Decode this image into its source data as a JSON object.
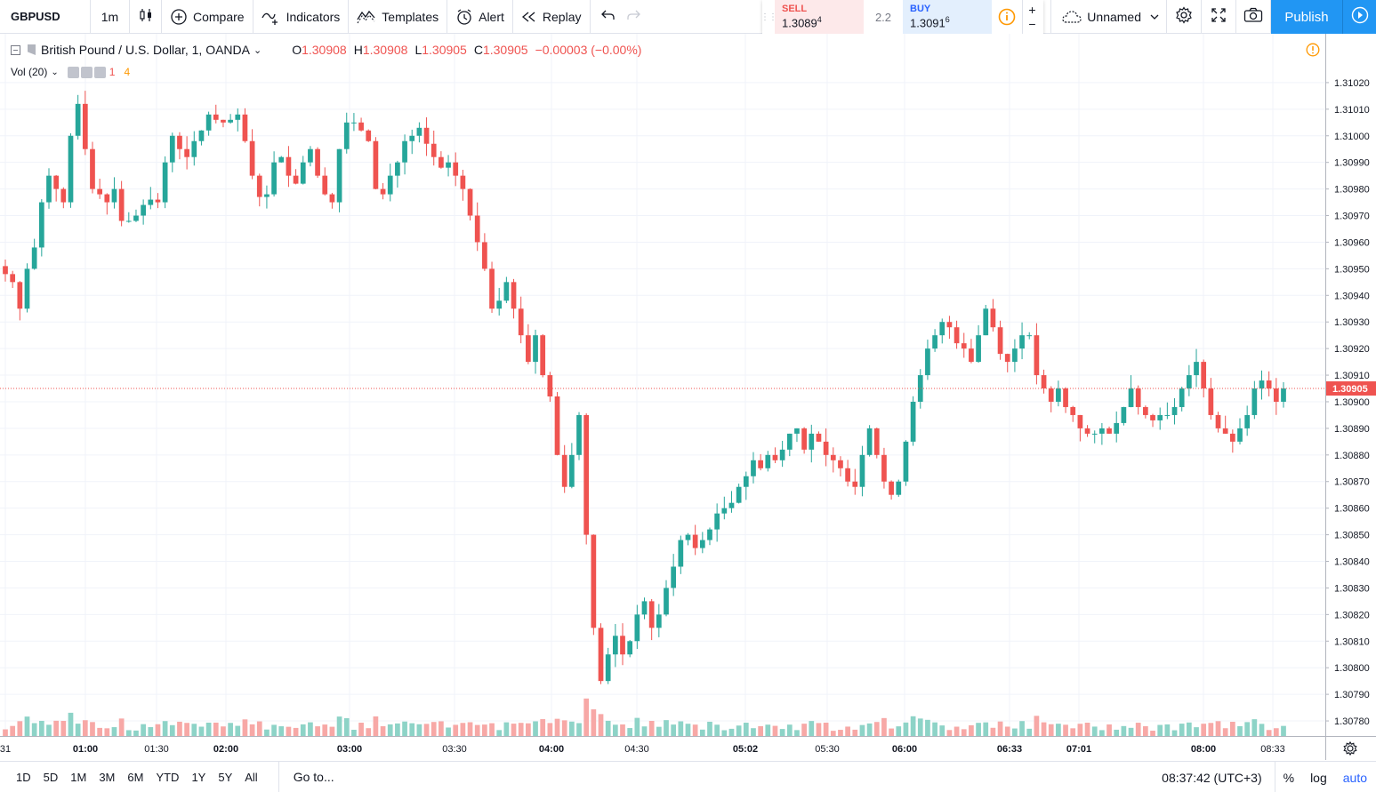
{
  "toolbar": {
    "symbol": "GBPUSD",
    "interval": "1m",
    "compare_label": "Compare",
    "indicators_label": "Indicators",
    "templates_label": "Templates",
    "alert_label": "Alert",
    "replay_label": "Replay"
  },
  "trade": {
    "sell_label": "SELL",
    "sell_price_main": "1.3089",
    "sell_price_sup": "4",
    "spread": "2.2",
    "buy_label": "BUY",
    "buy_price_main": "1.3091",
    "buy_price_sup": "6",
    "plus": "+",
    "minus": "−"
  },
  "layout_name": "Unnamed",
  "publish_label": "Publish",
  "legend": {
    "title": "British Pound / U.S. Dollar, 1, OANDA",
    "o_label": "O",
    "o_value": "1.30908",
    "h_label": "H",
    "h_value": "1.30908",
    "l_label": "L",
    "l_value": "1.30905",
    "c_label": "C",
    "c_value": "1.30905",
    "change": "−0.00003 (−0.00%)"
  },
  "volume_legend": {
    "label": "Vol (20)",
    "value1": "1",
    "value2": "4"
  },
  "chart_data": {
    "type": "candlestick",
    "symbol": "GBPUSD",
    "interval": "1",
    "source": "OANDA",
    "ylim": [
      1.30775,
      1.3103
    ],
    "y_ticks": [
      "1.31020",
      "1.31010",
      "1.31000",
      "1.30990",
      "1.30980",
      "1.30970",
      "1.30960",
      "1.30950",
      "1.30940",
      "1.30930",
      "1.30920",
      "1.30910",
      "1.30900",
      "1.30890",
      "1.30880",
      "1.30870",
      "1.30860",
      "1.30850",
      "1.30840",
      "1.30830",
      "1.30820",
      "1.30810",
      "1.30800",
      "1.30790",
      "1.30780"
    ],
    "x_ticks": [
      "31",
      "01:00",
      "01:30",
      "02:00",
      "03:00",
      "03:30",
      "04:00",
      "04:30",
      "05:02",
      "05:30",
      "06:00",
      "06:33",
      "07:01",
      "08:00",
      "08:33"
    ],
    "last_price": 1.30905,
    "last_price_label": "1.30905",
    "up_color": "#26a69a",
    "down_color": "#ef5350",
    "close_path": [
      1.30948,
      1.30945,
      1.30935,
      1.3095,
      1.30958,
      1.30975,
      1.30985,
      1.3098,
      1.30975,
      1.31,
      1.31012,
      1.30995,
      1.3098,
      1.30978,
      1.30975,
      1.3098,
      1.30968,
      1.30968,
      1.3097,
      1.30974,
      1.30976,
      1.30975,
      1.3099,
      1.31,
      1.30995,
      1.30992,
      1.30998,
      1.31002,
      1.31008,
      1.31006,
      1.31005,
      1.31006,
      1.31008,
      1.30998,
      1.30985,
      1.30977,
      1.30978,
      1.3099,
      1.30992,
      1.30985,
      1.30982,
      1.3099,
      1.30995,
      1.30985,
      1.30978,
      1.30975,
      1.30995,
      1.31005,
      1.31005,
      1.31002,
      1.30998,
      1.3098,
      1.30978,
      1.30985,
      1.3099,
      1.30998,
      1.31,
      1.31003,
      1.30997,
      1.30992,
      1.30988,
      1.3099,
      1.30985,
      1.3098,
      1.3097,
      1.3096,
      1.3095,
      1.30935,
      1.30938,
      1.30945,
      1.30935,
      1.30925,
      1.30915,
      1.30925,
      1.3091,
      1.30902,
      1.3088,
      1.30868,
      1.3088,
      1.30895,
      1.3085,
      1.30815,
      1.30795,
      1.30805,
      1.30812,
      1.30805,
      1.3081,
      1.3082,
      1.30825,
      1.30815,
      1.3082,
      1.3083,
      1.30838,
      1.30848,
      1.3085,
      1.30845,
      1.30848,
      1.30852,
      1.30858,
      1.3086,
      1.30862,
      1.30868,
      1.30872,
      1.30878,
      1.30875,
      1.3088,
      1.30878,
      1.30882,
      1.30888,
      1.3089,
      1.30882,
      1.30888,
      1.30885,
      1.3088,
      1.30878,
      1.30875,
      1.3087,
      1.30868,
      1.3088,
      1.3089,
      1.3088,
      1.3087,
      1.30865,
      1.3087,
      1.30885,
      1.309,
      1.3091,
      1.3092,
      1.30925,
      1.3093,
      1.30928,
      1.30922,
      1.3092,
      1.30915,
      1.30925,
      1.30935,
      1.30928,
      1.30918,
      1.30915,
      1.3092,
      1.30925,
      1.30925,
      1.3091,
      1.30905,
      1.309,
      1.30905,
      1.30898,
      1.30895,
      1.3089,
      1.30888,
      1.30888,
      1.3089,
      1.30888,
      1.30892,
      1.30898,
      1.30905,
      1.30898,
      1.30895,
      1.30893,
      1.30895,
      1.30895,
      1.30898,
      1.30905,
      1.3091,
      1.30915,
      1.30905,
      1.30895,
      1.3089,
      1.30888,
      1.30885,
      1.3089,
      1.30895,
      1.30905,
      1.30908,
      1.30905,
      1.309,
      1.30905
    ],
    "volume_ylim": [
      0,
      110
    ]
  },
  "bottombar": {
    "ranges": [
      "1D",
      "5D",
      "1M",
      "3M",
      "6M",
      "YTD",
      "1Y",
      "5Y",
      "All"
    ],
    "goto_label": "Go to...",
    "clock": "08:37:42 (UTC+3)",
    "percent_label": "%",
    "log_label": "log",
    "auto_label": "auto"
  },
  "colors": {
    "accent": "#2196f3",
    "up": "#26a69a",
    "down": "#ef5350",
    "volume_up": "#8dd3c7",
    "volume_down": "#f7a8a6",
    "warning": "#ff9800"
  }
}
